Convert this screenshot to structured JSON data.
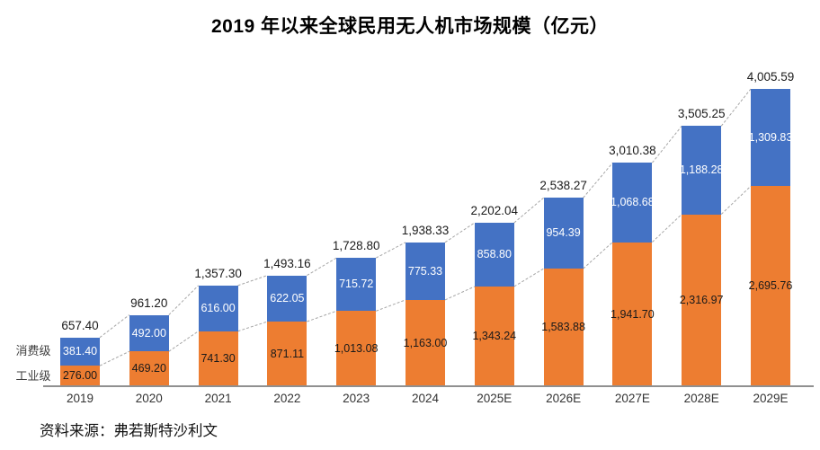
{
  "title": "2019 年以来全球民用无人机市场规模（亿元）",
  "source": "资料来源：弗若斯特沙利文",
  "legend": {
    "consumer": "消费级",
    "industrial": "工业级"
  },
  "colors": {
    "consumer": "#4472C4",
    "industrial": "#ED7D31",
    "axis": "#909090",
    "connector": "#a6a6a6",
    "label_on_consumer": "#ffffff",
    "label_on_industrial": "#1a1a1a"
  },
  "chart_data": {
    "type": "bar",
    "stacked": true,
    "title": "2019 年以来全球民用无人机市场规模（亿元）",
    "categories": [
      "2019",
      "2020",
      "2021",
      "2022",
      "2023",
      "2024",
      "2025E",
      "2026E",
      "2027E",
      "2028E",
      "2029E"
    ],
    "series": [
      {
        "name": "工业级",
        "color": "#ED7D31",
        "values": [
          276.0,
          469.2,
          741.3,
          871.11,
          1013.08,
          1163.0,
          1343.24,
          1583.88,
          1941.7,
          2316.97,
          2695.76
        ],
        "labels": [
          "276.00",
          "469.20",
          "741.30",
          "871.11",
          "1,013.08",
          "1,163.00",
          "1,343.24",
          "1,583.88",
          "1,941.70",
          "2,316.97",
          "2,695.76"
        ]
      },
      {
        "name": "消费级",
        "color": "#4472C4",
        "values": [
          381.4,
          492.0,
          616.0,
          622.05,
          715.72,
          775.33,
          858.8,
          954.39,
          1068.68,
          1188.28,
          1309.83
        ],
        "labels": [
          "381.40",
          "492.00",
          "616.00",
          "622.05",
          "715.72",
          "775.33",
          "858.80",
          "954.39",
          "1,068.68",
          "1,188.28",
          "1,309.83"
        ]
      }
    ],
    "totals": [
      657.4,
      961.2,
      1357.3,
      1493.16,
      1728.8,
      1938.33,
      2202.04,
      2538.27,
      3010.38,
      3505.25,
      4005.59
    ],
    "total_labels": [
      "657.40",
      "961.20",
      "1,357.30",
      "1,493.16",
      "1,728.80",
      "1,938.33",
      "2,202.04",
      "2,538.27",
      "3,010.38",
      "3,505.25",
      "4,005.59"
    ],
    "ylim": [
      0,
      4005.59
    ],
    "grid": false,
    "value_unit": "亿元",
    "legend_position": "left-of-first-bar",
    "connector_lines": true
  }
}
